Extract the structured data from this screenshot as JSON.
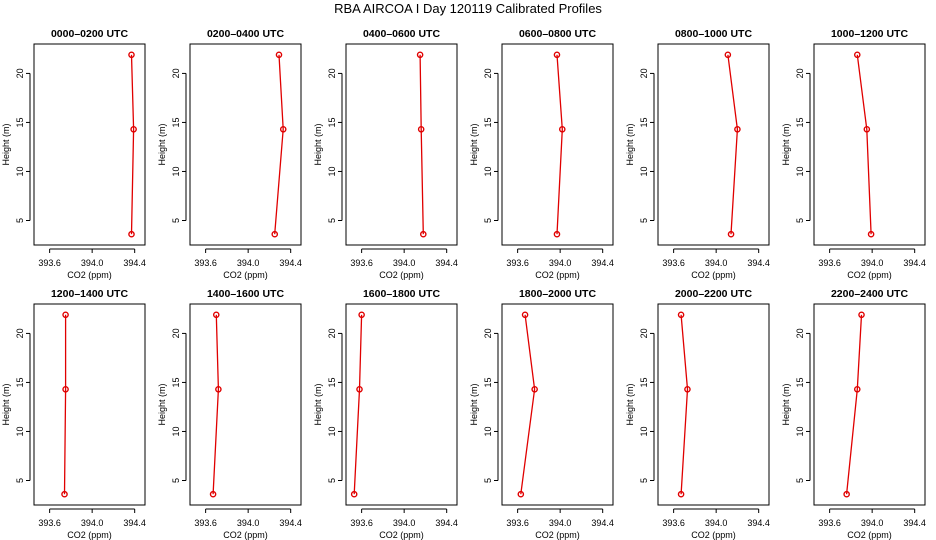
{
  "title": "RBA AIRCOA I  Day 120119  Calibrated Profiles",
  "colors": {
    "profile": "#e00000",
    "axis": "#000000",
    "background": "#ffffff"
  },
  "chart_data": [
    {
      "type": "line",
      "title": "0000–0200 UTC",
      "xlabel": "CO2 (ppm)",
      "ylabel": "Height (m)",
      "xlim": [
        393.5,
        394.45
      ],
      "ylim": [
        2.5,
        23
      ],
      "xticks": [
        "393.6",
        "394.0",
        "394.4"
      ],
      "yticks": [
        "5",
        "10",
        "15",
        "20"
      ],
      "x": [
        394.37,
        394.39,
        394.37
      ],
      "y": [
        3.6,
        14.3,
        21.9
      ]
    },
    {
      "type": "line",
      "title": "0200–0400 UTC",
      "xlabel": "CO2 (ppm)",
      "ylabel": "Height (m)",
      "xlim": [
        393.5,
        394.45
      ],
      "ylim": [
        2.5,
        23
      ],
      "xticks": [
        "393.6",
        "394.0",
        "394.4"
      ],
      "yticks": [
        "5",
        "10",
        "15",
        "20"
      ],
      "x": [
        394.25,
        394.33,
        394.29
      ],
      "y": [
        3.6,
        14.3,
        21.9
      ]
    },
    {
      "type": "line",
      "title": "0400–0600 UTC",
      "xlabel": "CO2 (ppm)",
      "ylabel": "Height (m)",
      "xlim": [
        393.5,
        394.45
      ],
      "ylim": [
        2.5,
        23
      ],
      "xticks": [
        "393.6",
        "394.0",
        "394.4"
      ],
      "yticks": [
        "5",
        "10",
        "15",
        "20"
      ],
      "x": [
        394.18,
        394.16,
        394.15
      ],
      "y": [
        3.6,
        14.3,
        21.9
      ]
    },
    {
      "type": "line",
      "title": "0600–0800 UTC",
      "xlabel": "CO2 (ppm)",
      "ylabel": "Height (m)",
      "xlim": [
        393.5,
        394.45
      ],
      "ylim": [
        2.5,
        23
      ],
      "xticks": [
        "393.6",
        "394.0",
        "394.4"
      ],
      "yticks": [
        "5",
        "10",
        "15",
        "20"
      ],
      "x": [
        393.97,
        394.02,
        393.97
      ],
      "y": [
        3.6,
        14.3,
        21.9
      ]
    },
    {
      "type": "line",
      "title": "0800–1000 UTC",
      "xlabel": "CO2 (ppm)",
      "ylabel": "Height (m)",
      "xlim": [
        393.5,
        394.45
      ],
      "ylim": [
        2.5,
        23
      ],
      "xticks": [
        "393.6",
        "394.0",
        "394.4"
      ],
      "yticks": [
        "5",
        "10",
        "15",
        "20"
      ],
      "x": [
        394.14,
        394.2,
        394.11
      ],
      "y": [
        3.6,
        14.3,
        21.9
      ]
    },
    {
      "type": "line",
      "title": "1000–1200 UTC",
      "xlabel": "CO2 (ppm)",
      "ylabel": "Height (m)",
      "xlim": [
        393.5,
        394.45
      ],
      "ylim": [
        2.5,
        23
      ],
      "xticks": [
        "393.6",
        "394.0",
        "394.4"
      ],
      "yticks": [
        "5",
        "10",
        "15",
        "20"
      ],
      "x": [
        393.99,
        393.95,
        393.86
      ],
      "y": [
        3.6,
        14.3,
        21.9
      ]
    },
    {
      "type": "line",
      "title": "1200–1400 UTC",
      "xlabel": "CO2 (ppm)",
      "ylabel": "Height (m)",
      "xlim": [
        393.5,
        394.45
      ],
      "ylim": [
        2.5,
        23
      ],
      "xticks": [
        "393.6",
        "394.0",
        "394.4"
      ],
      "yticks": [
        "5",
        "10",
        "15",
        "20"
      ],
      "x": [
        393.74,
        393.75,
        393.75
      ],
      "y": [
        3.6,
        14.3,
        21.9
      ]
    },
    {
      "type": "line",
      "title": "1400–1600 UTC",
      "xlabel": "CO2 (ppm)",
      "ylabel": "Height (m)",
      "xlim": [
        393.5,
        394.45
      ],
      "ylim": [
        2.5,
        23
      ],
      "xticks": [
        "393.6",
        "394.0",
        "394.4"
      ],
      "yticks": [
        "5",
        "10",
        "15",
        "20"
      ],
      "x": [
        393.67,
        393.72,
        393.7
      ],
      "y": [
        3.6,
        14.3,
        21.9
      ]
    },
    {
      "type": "line",
      "title": "1600–1800 UTC",
      "xlabel": "CO2 (ppm)",
      "ylabel": "Height (m)",
      "xlim": [
        393.5,
        394.45
      ],
      "ylim": [
        2.5,
        23
      ],
      "xticks": [
        "393.6",
        "394.0",
        "394.4"
      ],
      "yticks": [
        "5",
        "10",
        "15",
        "20"
      ],
      "x": [
        393.53,
        393.58,
        393.6
      ],
      "y": [
        3.6,
        14.3,
        21.9
      ]
    },
    {
      "type": "line",
      "title": "1800–2000 UTC",
      "xlabel": "CO2 (ppm)",
      "ylabel": "Height (m)",
      "xlim": [
        393.5,
        394.45
      ],
      "ylim": [
        2.5,
        23
      ],
      "xticks": [
        "393.6",
        "394.0",
        "394.4"
      ],
      "yticks": [
        "5",
        "10",
        "15",
        "20"
      ],
      "x": [
        393.63,
        393.76,
        393.67
      ],
      "y": [
        3.6,
        14.3,
        21.9
      ]
    },
    {
      "type": "line",
      "title": "2000–2200 UTC",
      "xlabel": "CO2 (ppm)",
      "ylabel": "Height (m)",
      "xlim": [
        393.5,
        394.45
      ],
      "ylim": [
        2.5,
        23
      ],
      "xticks": [
        "393.6",
        "394.0",
        "394.4"
      ],
      "yticks": [
        "5",
        "10",
        "15",
        "20"
      ],
      "x": [
        393.67,
        393.73,
        393.67
      ],
      "y": [
        3.6,
        14.3,
        21.9
      ]
    },
    {
      "type": "line",
      "title": "2200–2400 UTC",
      "xlabel": "CO2 (ppm)",
      "ylabel": "Height (m)",
      "xlim": [
        393.5,
        394.45
      ],
      "ylim": [
        2.5,
        23
      ],
      "xticks": [
        "393.6",
        "394.0",
        "394.4"
      ],
      "yticks": [
        "5",
        "10",
        "15",
        "20"
      ],
      "x": [
        393.76,
        393.86,
        393.9
      ],
      "y": [
        3.6,
        14.3,
        21.9
      ]
    }
  ]
}
